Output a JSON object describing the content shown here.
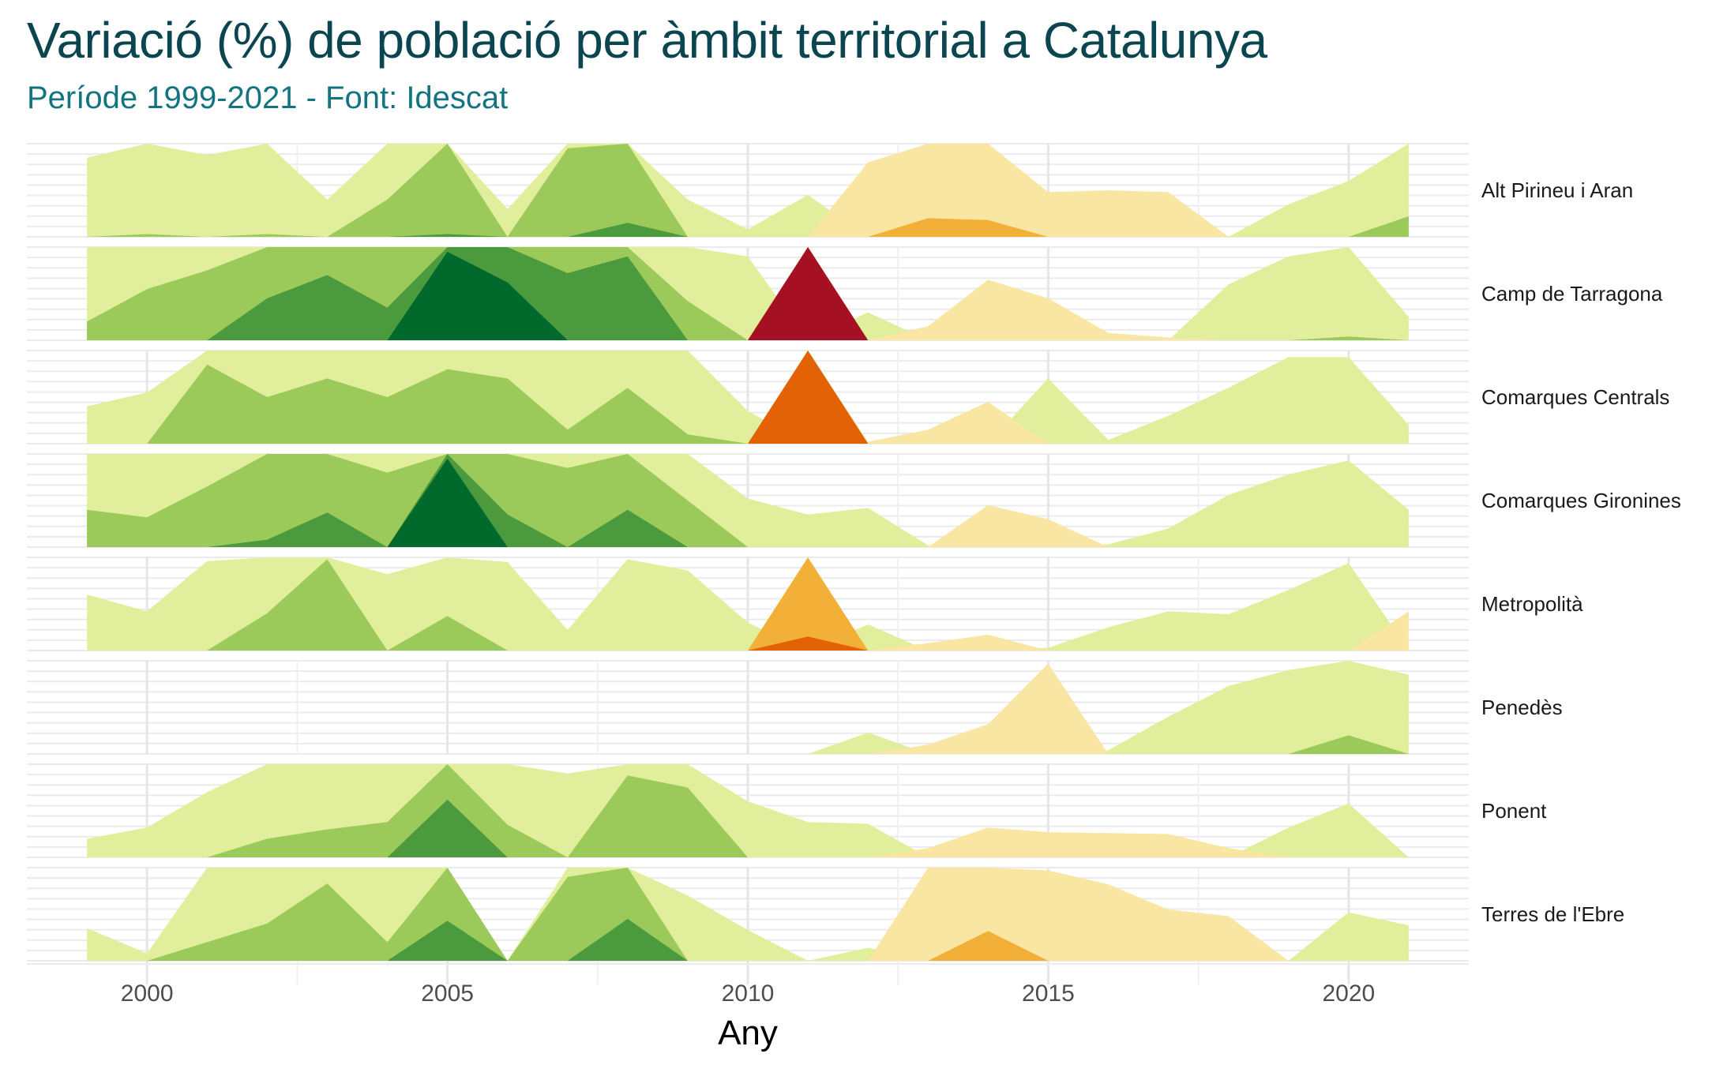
{
  "chart_data": {
    "type": "area",
    "title": "Variació (%) de població per àmbit territorial a Catalunya",
    "subtitle": "Període 1999-2021 - Font: Idescat",
    "xlabel": "Any",
    "ylabel": "",
    "xlim": [
      1998,
      2022
    ],
    "x_ticks": [
      2000,
      2005,
      2010,
      2015,
      2020
    ],
    "grid": true,
    "chart_style": "horizon",
    "years": [
      1999,
      2000,
      2001,
      2002,
      2003,
      2004,
      2005,
      2006,
      2007,
      2008,
      2009,
      2010,
      2011,
      2012,
      2013,
      2014,
      2015,
      2016,
      2017,
      2018,
      2019,
      2020,
      2021
    ],
    "band_size": 1.0,
    "colors": {
      "pos": [
        "#e1ee9b",
        "#9cca5a",
        "#4c9a3e",
        "#00692c"
      ],
      "neg": [
        "#f8e6a2",
        "#f2b039",
        "#e36205",
        "#a51122"
      ]
    },
    "series": [
      {
        "name": "Alt Pirineu i Aran",
        "values": [
          0.85,
          1.03,
          0.88,
          1.03,
          0.4,
          1.4,
          2.03,
          0.3,
          1.95,
          2.15,
          0.4,
          0.08,
          0.45,
          -0.8,
          -1.2,
          -1.18,
          -0.48,
          -0.5,
          -0.48,
          0,
          0.35,
          0.6,
          1.22
        ]
      },
      {
        "name": "Camp de Tarragona",
        "values": [
          1.2,
          1.55,
          1.75,
          2.45,
          2.7,
          2.35,
          3.95,
          3.62,
          2.72,
          2.9,
          1.42,
          0.9,
          -4,
          0.3,
          -0.15,
          -0.65,
          -0.45,
          -0.08,
          -0.03,
          0.6,
          0.9,
          1.04,
          0.25
        ]
      },
      {
        "name": "Comarques Centrals",
        "values": [
          0.4,
          0.55,
          1.85,
          1.5,
          1.7,
          1.5,
          1.8,
          1.7,
          1.15,
          1.6,
          1.1,
          0.35,
          -3,
          -0.02,
          -0.15,
          -0.45,
          0.7,
          0.04,
          0.3,
          0.6,
          0.93,
          0.93,
          0.2
        ]
      },
      {
        "name": "Comarques Gironines",
        "values": [
          1.4,
          1.32,
          1.65,
          2.08,
          2.37,
          1.8,
          3.95,
          2.35,
          1.85,
          2.4,
          1.5,
          0.52,
          0.35,
          0.42,
          0.02,
          -0.45,
          -0.3,
          0.03,
          0.2,
          0.56,
          0.78,
          0.93,
          0.4
        ]
      },
      {
        "name": "Metropolità",
        "values": [
          0.6,
          0.42,
          0.96,
          1.4,
          1.98,
          0.82,
          1.37,
          0.95,
          0.22,
          0.98,
          0.86,
          0.3,
          -2.15,
          0.28,
          -0.08,
          -0.17,
          0.03,
          0.25,
          0.42,
          0.39,
          0.65,
          0.94,
          -0.42
        ]
      },
      {
        "name": "Penedès",
        "values": [
          null,
          null,
          null,
          null,
          null,
          null,
          null,
          null,
          null,
          null,
          null,
          null,
          0,
          0.23,
          -0.1,
          -0.32,
          -0.97,
          0.04,
          0.4,
          0.73,
          0.9,
          1.2,
          0.85
        ]
      },
      {
        "name": "Ponent",
        "values": [
          0.2,
          0.32,
          0.7,
          1.2,
          1.3,
          1.38,
          2.62,
          1.35,
          0.9,
          1.88,
          1.75,
          0.6,
          0.38,
          0.36,
          -0.1,
          -0.32,
          -0.27,
          -0.26,
          -0.25,
          -0.1,
          0.32,
          0.58,
          0
        ]
      },
      {
        "name": "Terres de l'Ebre",
        "values": [
          0.35,
          0.08,
          1.2,
          1.4,
          1.83,
          1.2,
          2.43,
          0,
          1.9,
          2.45,
          0.7,
          0.33,
          0,
          0.14,
          -1,
          -1.32,
          -0.97,
          -0.82,
          -0.55,
          -0.48,
          0,
          0.52,
          0.38
        ]
      }
    ]
  }
}
